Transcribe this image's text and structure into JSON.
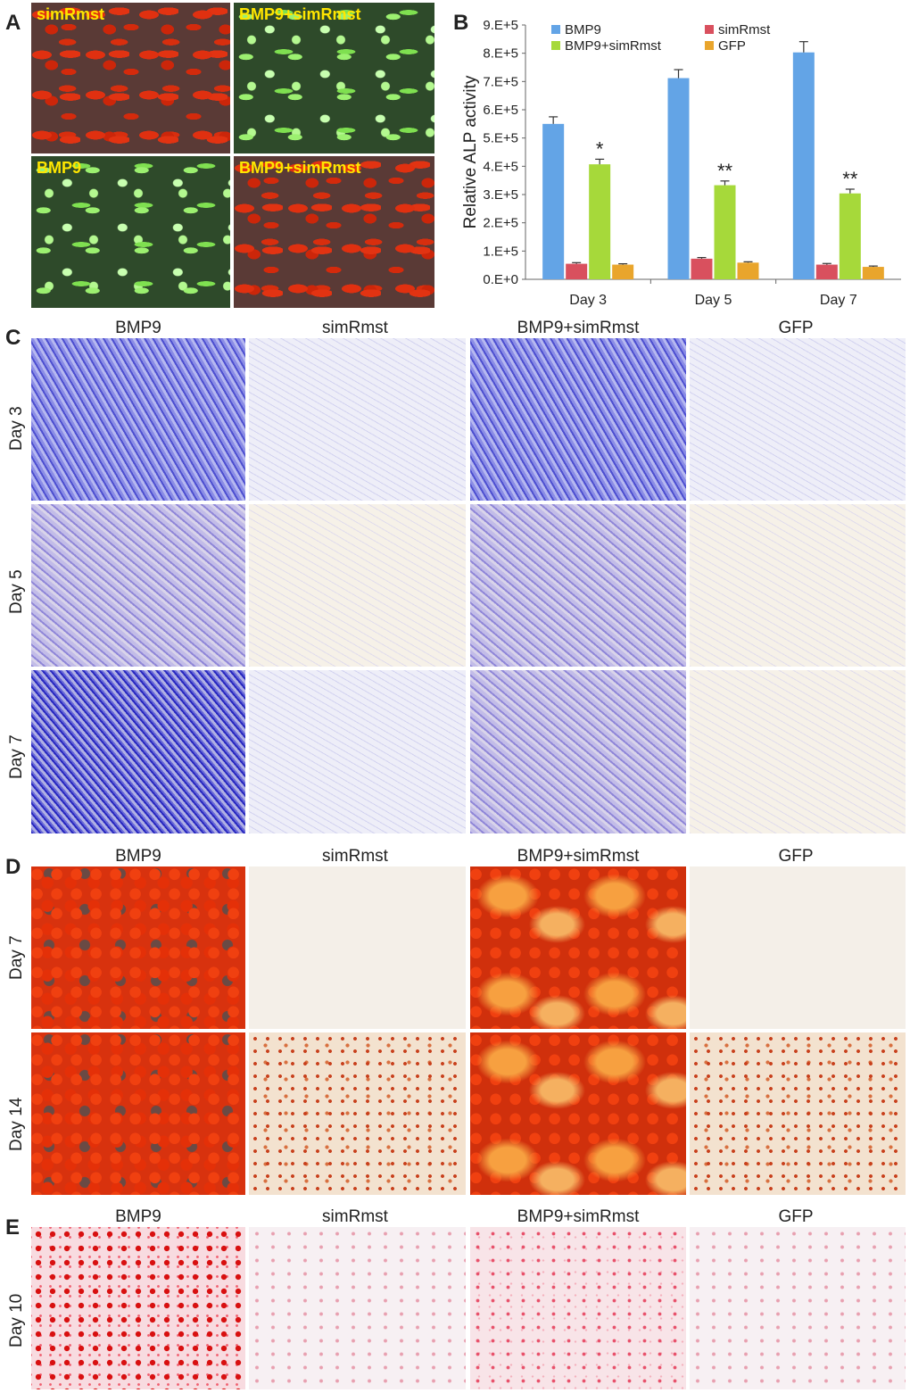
{
  "panels": {
    "A": {
      "letter": "A",
      "images": [
        {
          "label": "simRmst"
        },
        {
          "label": "BMP9+simRmst"
        },
        {
          "label": "BMP9"
        },
        {
          "label": "BMP9+simRmst"
        }
      ]
    },
    "B": {
      "letter": "B"
    },
    "C": {
      "letter": "C",
      "columns": [
        "BMP9",
        "simRmst",
        "BMP9+simRmst",
        "GFP"
      ],
      "rows": [
        "Day 3",
        "Day 5",
        "Day 7"
      ]
    },
    "D": {
      "letter": "D",
      "columns": [
        "BMP9",
        "simRmst",
        "BMP9+simRmst",
        "GFP"
      ],
      "rows": [
        "Day 7",
        "Day 14"
      ]
    },
    "E": {
      "letter": "E",
      "columns": [
        "BMP9",
        "simRmst",
        "BMP9+simRmst",
        "GFP"
      ],
      "rows": [
        "Day 10"
      ]
    }
  },
  "chart_data": {
    "type": "bar",
    "title": "",
    "xlabel": "",
    "ylabel": "Relative ALP activity",
    "categories": [
      "Day 3",
      "Day 5",
      "Day 7"
    ],
    "ylim": [
      0,
      900000
    ],
    "yticks": [
      "0.E+0",
      "1.E+5",
      "2.E+5",
      "3.E+5",
      "4.E+5",
      "5.E+5",
      "6.E+5",
      "7.E+5",
      "8.E+5",
      "9.E+5"
    ],
    "legend_position": "top",
    "series": [
      {
        "name": "BMP9",
        "color": "#63a4e6",
        "values": [
          550000,
          712000,
          803000
        ],
        "errors": [
          25000,
          30000,
          38000
        ]
      },
      {
        "name": "simRmst",
        "color": "#d9505e",
        "values": [
          55000,
          73000,
          52000
        ],
        "errors": [
          4000,
          4000,
          4000
        ]
      },
      {
        "name": "BMP9+simRmst",
        "color": "#a6d93a",
        "values": [
          407000,
          333000,
          304000
        ],
        "errors": [
          18000,
          15000,
          15000
        ]
      },
      {
        "name": "GFP",
        "color": "#e9a52c",
        "values": [
          52000,
          59000,
          44000
        ],
        "errors": [
          3000,
          3000,
          3000
        ]
      }
    ],
    "significance": [
      {
        "category": "Day 3",
        "series": "BMP9+simRmst",
        "mark": "*"
      },
      {
        "category": "Day 5",
        "series": "BMP9+simRmst",
        "mark": "**"
      },
      {
        "category": "Day 7",
        "series": "BMP9+simRmst",
        "mark": "**"
      }
    ]
  }
}
